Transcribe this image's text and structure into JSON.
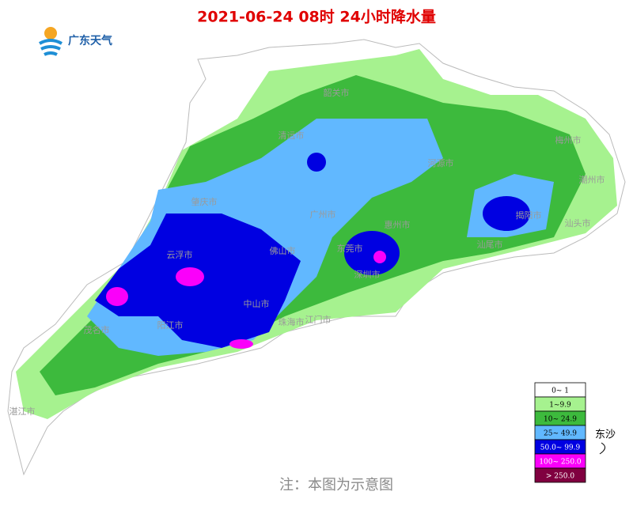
{
  "title": "2021-06-24 08时 24小时降水量",
  "logo": "广东天气",
  "note": "注：本图为示意图",
  "island": "东沙",
  "cities": [
    "韶关市",
    "清远市",
    "河源市",
    "梅州市",
    "潮州市",
    "肇庆市",
    "广州市",
    "惠州市",
    "揭阳市",
    "汕头市",
    "云浮市",
    "佛山市",
    "东莞市",
    "汕尾市",
    "深圳市",
    "中山市",
    "江门市",
    "茂名市",
    "阳江市",
    "珠海市",
    "湛江市"
  ],
  "legend": [
    {
      "label": "0~ 1",
      "color": "#ffffff"
    },
    {
      "label": "1~9.9",
      "color": "#a6f28f"
    },
    {
      "label": "10~ 24.9",
      "color": "#3dba3d"
    },
    {
      "label": "25~ 49.9",
      "color": "#61b8ff"
    },
    {
      "label": "50.0~ 99.9",
      "color": "#0000e1"
    },
    {
      "label": "100~ 250.0",
      "color": "#fa00fa"
    },
    {
      "label": "> 250.0",
      "color": "#800040"
    }
  ]
}
